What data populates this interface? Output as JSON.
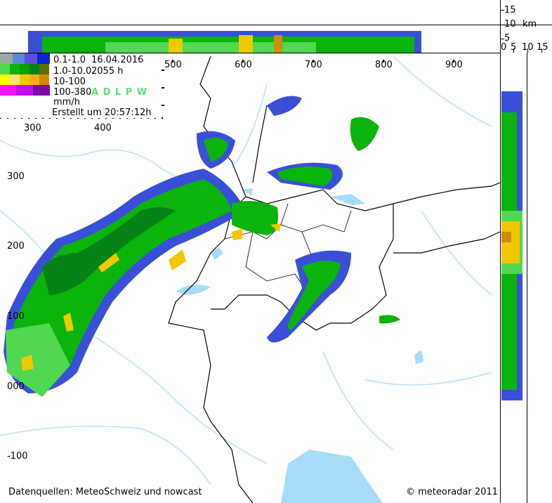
{
  "map": {
    "x_ticks": [
      "500",
      "600",
      "700",
      "800",
      "900"
    ],
    "x_ticks_left": [
      "300",
      "400"
    ],
    "y_ticks": [
      "300",
      "200",
      "100",
      "000",
      "-100"
    ],
    "credits_left": "Datenquellen: MeteoSchweiz und nowcast",
    "credits_right": "© meteoradar 2011"
  },
  "legend": {
    "rows": [
      {
        "label": "0.1-1.0",
        "colors": [
          "#9aa9a6",
          "#5a8ad4",
          "#5a4fd8",
          "#0a24cf"
        ]
      },
      {
        "label": "1.0-10.0",
        "colors": [
          "#4fd850",
          "#0ab40a",
          "#05a005",
          "#078217",
          "#5e6f0a"
        ]
      },
      {
        "label": "10-100",
        "colors": [
          "#ffff00",
          "#ffe07a",
          "#f0c800",
          "#ffaa1e",
          "#cf8c00"
        ]
      },
      {
        "label": "100-380",
        "colors": [
          "#ff12ff",
          "#be0ff0",
          "#780aa5"
        ]
      }
    ],
    "unit": "mm/h",
    "date": "16.04.2016",
    "time": "2055  h",
    "stations": "A D L P W",
    "stations_color": "#5fe07a",
    "created": "Erstellt  um  20:57:12h"
  },
  "profile": {
    "height_ticks": [
      "15",
      "10",
      "5"
    ],
    "height_unit": "km",
    "width_ticks": [
      "0",
      "5",
      "10",
      "15"
    ]
  }
}
